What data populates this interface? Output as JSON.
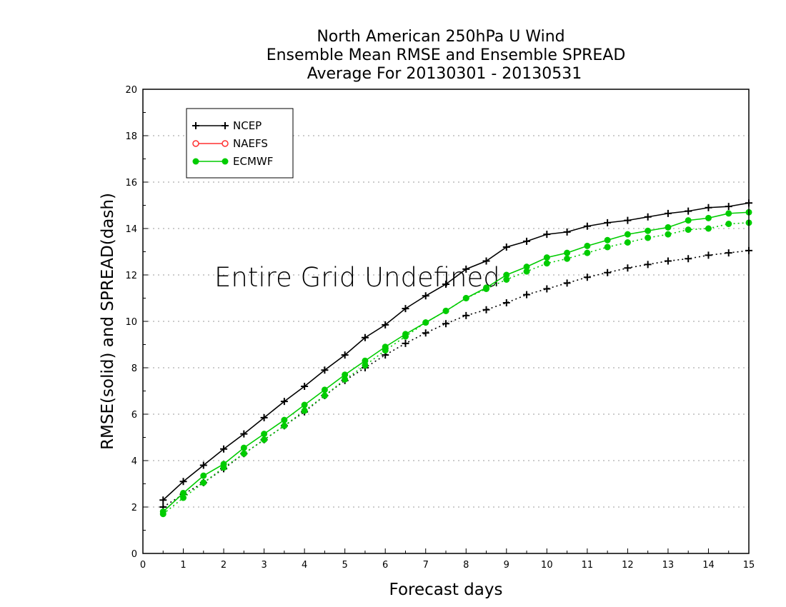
{
  "chart_data": {
    "type": "line",
    "title": [
      "North American 250hPa U Wind",
      "Ensemble Mean RMSE and Ensemble SPREAD",
      "Average For 20130301 - 20130531"
    ],
    "xlabel": "Forecast days",
    "ylabel": "RMSE(solid) and SPREAD(dash)",
    "xlim": [
      0,
      15
    ],
    "ylim": [
      0,
      20
    ],
    "x_ticks": [
      0,
      1,
      2,
      3,
      4,
      5,
      6,
      7,
      8,
      9,
      10,
      11,
      12,
      13,
      14,
      15
    ],
    "y_ticks": [
      0,
      2,
      4,
      6,
      8,
      10,
      12,
      14,
      16,
      18,
      20
    ],
    "grid": "horizontal-dotted",
    "legend_position": "top-left",
    "annotation": "Entire Grid Undefined",
    "x": [
      0.5,
      1,
      1.5,
      2,
      2.5,
      3,
      3.5,
      4,
      4.5,
      5,
      5.5,
      6,
      6.5,
      7,
      7.5,
      8,
      8.5,
      9,
      9.5,
      10,
      10.5,
      11,
      11.5,
      12,
      12.5,
      13,
      13.5,
      14,
      14.5,
      15
    ],
    "series": [
      {
        "name": "NCEP",
        "color": "#000000",
        "marker": "plus",
        "rmse": [
          2.3,
          3.1,
          3.8,
          4.5,
          5.15,
          5.85,
          6.55,
          7.2,
          7.9,
          8.55,
          9.3,
          9.85,
          10.55,
          11.1,
          11.6,
          12.25,
          12.6,
          13.2,
          13.45,
          13.75,
          13.85,
          14.1,
          14.25,
          14.35,
          14.5,
          14.65,
          14.75,
          14.9,
          14.95,
          15.1
        ],
        "spread": [
          2.0,
          2.55,
          3.05,
          3.65,
          4.3,
          4.9,
          5.5,
          6.1,
          6.8,
          7.45,
          8.0,
          8.55,
          9.05,
          9.5,
          9.9,
          10.25,
          10.5,
          10.8,
          11.15,
          11.4,
          11.65,
          11.9,
          12.1,
          12.3,
          12.45,
          12.6,
          12.7,
          12.85,
          12.95,
          13.05
        ]
      },
      {
        "name": "NAEFS",
        "color": "#ff3030",
        "marker": "open-circle",
        "rmse": [],
        "spread": []
      },
      {
        "name": "ECMWF",
        "color": "#00cc00",
        "marker": "filled-circle",
        "rmse": [
          1.8,
          2.6,
          3.35,
          3.85,
          4.55,
          5.15,
          5.75,
          6.4,
          7.05,
          7.7,
          8.3,
          8.9,
          9.45,
          9.95,
          10.45,
          11.0,
          11.45,
          12.0,
          12.35,
          12.75,
          12.95,
          13.25,
          13.5,
          13.75,
          13.9,
          14.05,
          14.35,
          14.45,
          14.65,
          14.7
        ],
        "spread": [
          1.7,
          2.4,
          3.05,
          3.7,
          4.3,
          4.9,
          5.5,
          6.15,
          6.8,
          7.5,
          8.1,
          8.75,
          9.35,
          9.95,
          10.45,
          11.0,
          11.4,
          11.8,
          12.15,
          12.5,
          12.7,
          12.95,
          13.2,
          13.4,
          13.6,
          13.75,
          13.95,
          14.0,
          14.2,
          14.25
        ]
      }
    ]
  }
}
